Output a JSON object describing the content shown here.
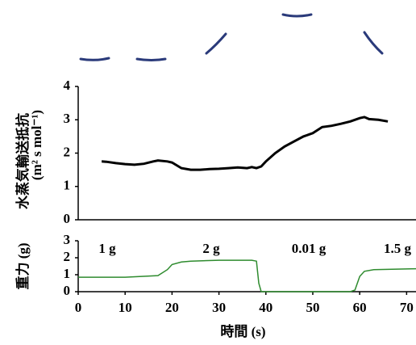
{
  "chart_data": [
    {
      "type": "line",
      "y_label": [
        "水蒸気輸送抵抗",
        "(m² s mol⁻¹)"
      ],
      "x": [
        5,
        6,
        8,
        10,
        12,
        14,
        16,
        17,
        19,
        20,
        22,
        24,
        26,
        28,
        30,
        32,
        34,
        36,
        37,
        38,
        39,
        40,
        42,
        44,
        46,
        48,
        50,
        52,
        54,
        56,
        58,
        60,
        61,
        62,
        64,
        66
      ],
      "values": [
        1.75,
        1.74,
        1.7,
        1.67,
        1.65,
        1.68,
        1.75,
        1.78,
        1.75,
        1.72,
        1.55,
        1.5,
        1.5,
        1.52,
        1.53,
        1.55,
        1.57,
        1.55,
        1.58,
        1.55,
        1.6,
        1.75,
        2.0,
        2.2,
        2.35,
        2.5,
        2.6,
        2.78,
        2.82,
        2.88,
        2.95,
        3.05,
        3.08,
        3.02,
        3.0,
        2.95
      ],
      "color": "#000000",
      "xlim": [
        0,
        72
      ],
      "ylim": [
        0,
        4
      ],
      "yticks": [
        0,
        1,
        2,
        3,
        4
      ]
    },
    {
      "type": "line",
      "y_label": "重力 (g)",
      "x_label": "時間 (s)",
      "annotations": [
        "1 g",
        "2 g",
        "0.01 g",
        "1.5 g"
      ],
      "x": [
        0,
        10,
        17,
        19,
        20,
        22,
        24,
        30,
        37,
        38,
        38.5,
        39,
        45,
        58,
        59,
        60,
        61,
        63,
        72
      ],
      "values": [
        0.85,
        0.85,
        0.95,
        1.3,
        1.6,
        1.75,
        1.8,
        1.85,
        1.85,
        1.8,
        0.5,
        0,
        0,
        0,
        0.1,
        0.9,
        1.2,
        1.3,
        1.35
      ],
      "color": "#2e8b2e",
      "xlim": [
        0,
        72
      ],
      "ylim": [
        0,
        3
      ],
      "yticks": [
        0,
        1,
        2,
        3
      ],
      "xticks": [
        0,
        10,
        20,
        30,
        40,
        50,
        60,
        70
      ]
    }
  ]
}
